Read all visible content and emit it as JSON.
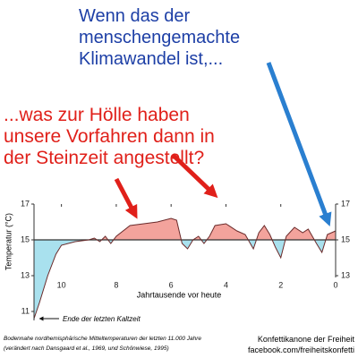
{
  "chart_data": {
    "type": "area",
    "headline": [
      "Wenn das der",
      "menschengemachte",
      "Klimawandel ist,..."
    ],
    "question": [
      "...was zur Hölle haben",
      "unsere Vorfahren dann in",
      "der Steinzeit angestellt?"
    ],
    "ylabel": "Temperatur (°C)",
    "xlabel": "Jahrtausende vor heute",
    "annotation": "Ende der letzten Kaltzeit",
    "caption": [
      "Bodennahe nordhemisphärische Mitteltemperaturen der letzten 11.000 Jahre",
      "(verändert nach Dansgaard et al., 1969, und Schönwiese, 1995)"
    ],
    "credit": [
      "Konfettikanone der Freiheit",
      "facebook.com/freiheitskonfetti"
    ],
    "xlim": [
      11,
      0
    ],
    "xticks": [
      10,
      8,
      6,
      4,
      2,
      0
    ],
    "ylim": [
      10.5,
      17
    ],
    "yticks": [
      11,
      13,
      15,
      17
    ],
    "y2lim": [
      10.5,
      17
    ],
    "y2ticks": [
      13,
      15,
      17
    ],
    "reference_line": 15,
    "above_color": "#f3a39c",
    "below_color": "#a9e1ee",
    "line_color": "#6a2a2a",
    "series": [
      {
        "x": [
          11,
          10.8,
          10.5,
          10.2,
          10,
          9.5,
          9,
          8.8,
          8.6,
          8.4,
          8.2,
          8,
          7.5,
          7,
          6.5,
          6,
          5.8,
          5.6,
          5.4,
          5.2,
          5,
          4.8,
          4.6,
          4.4,
          4,
          3.6,
          3.3,
          3,
          2.8,
          2.6,
          2.4,
          2.2,
          2,
          1.8,
          1.5,
          1.2,
          1,
          0.7,
          0.5,
          0.3,
          0
        ],
        "values": [
          10.6,
          11.5,
          13.0,
          14.2,
          14.7,
          14.9,
          15.0,
          15.1,
          14.9,
          15.2,
          14.8,
          15.2,
          15.8,
          15.9,
          16.0,
          16.2,
          16.1,
          14.8,
          14.5,
          15.0,
          15.2,
          14.8,
          15.2,
          15.8,
          15.9,
          15.5,
          15.3,
          14.5,
          15.4,
          15.8,
          15.3,
          14.6,
          14.0,
          15.2,
          15.7,
          15.4,
          15.6,
          14.8,
          14.3,
          15.3,
          15.5
        ]
      }
    ]
  }
}
